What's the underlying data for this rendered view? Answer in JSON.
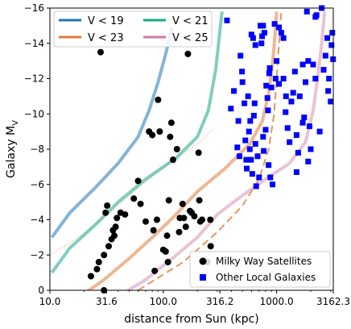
{
  "chart_data": {
    "type": "scatter",
    "xlabel": "distance from Sun (kpc)",
    "ylabel": "Galaxy $M_V$",
    "x_scale": "log",
    "xlim": [
      10.0,
      3162.3
    ],
    "ylim": [
      0,
      -16
    ],
    "x_ticks": [
      "10.0",
      "31.6",
      "100.0",
      "316.2",
      "1000.0",
      "3162.3"
    ],
    "x_tick_values": [
      10.0,
      31.6,
      100.0,
      316.2,
      1000.0,
      3162.3
    ],
    "y_ticks": [
      "0",
      "−2",
      "−4",
      "−6",
      "−8",
      "−10",
      "−12",
      "−14",
      "−16"
    ],
    "y_tick_values": [
      0,
      -2,
      -4,
      -6,
      -8,
      -10,
      -12,
      -14,
      -16
    ],
    "limit_curves": [
      {
        "name": "V < 19",
        "color": "#1f77b4",
        "opacity": 0.55,
        "width": 4,
        "points": [
          [
            10.4,
            -3.0
          ],
          [
            15,
            -4.4
          ],
          [
            25,
            -5.8
          ],
          [
            40,
            -7.2
          ],
          [
            60,
            -8.7
          ],
          [
            75,
            -10.2
          ],
          [
            90,
            -11.8
          ],
          [
            105,
            -13.4
          ],
          [
            120,
            -14.9
          ]
        ]
      },
      {
        "name": "V < 21",
        "color": "#17a589",
        "opacity": 0.55,
        "width": 4,
        "points": [
          [
            10.4,
            -1.0
          ],
          [
            15,
            -2.4
          ],
          [
            25,
            -3.7
          ],
          [
            40,
            -5.0
          ],
          [
            70,
            -6.3
          ],
          [
            130,
            -7.5
          ],
          [
            200,
            -8.7
          ],
          [
            250,
            -10.2
          ],
          [
            290,
            -12.5
          ],
          [
            330,
            -15.8
          ]
        ]
      },
      {
        "name": "V < 23",
        "color": "#e07b39",
        "opacity": 0.55,
        "width": 4,
        "points": [
          [
            19,
            0.3
          ],
          [
            30,
            -0.6
          ],
          [
            50,
            -1.8
          ],
          [
            80,
            -3.0
          ],
          [
            130,
            -4.3
          ],
          [
            200,
            -5.6
          ],
          [
            350,
            -6.9
          ],
          [
            580,
            -8.3
          ],
          [
            750,
            -9.6
          ],
          [
            850,
            -11.2
          ],
          [
            920,
            -12.8
          ],
          [
            970,
            -14.5
          ],
          [
            1000,
            -15.8
          ]
        ]
      },
      {
        "name": "V < 25",
        "color": "#cc79a7",
        "opacity": 0.45,
        "width": 4,
        "points": [
          [
            41,
            0.3
          ],
          [
            70,
            -0.6
          ],
          [
            120,
            -1.8
          ],
          [
            200,
            -3.0
          ],
          [
            300,
            -4.3
          ],
          [
            480,
            -5.3
          ],
          [
            800,
            -6.3
          ],
          [
            1300,
            -7.2
          ],
          [
            1800,
            -8.4
          ],
          [
            2100,
            -10.2
          ],
          [
            2300,
            -12.0
          ],
          [
            2500,
            -14.0
          ],
          [
            2650,
            -15.8
          ]
        ]
      }
    ],
    "other_curves": [
      {
        "color": "#e07b39",
        "opacity": 0.8,
        "width": 2,
        "dash": "9,5",
        "points": [
          [
            60,
            0.0
          ],
          [
            150,
            -1.6
          ],
          [
            300,
            -3.3
          ],
          [
            500,
            -4.8
          ],
          [
            700,
            -6.3
          ],
          [
            850,
            -8.0
          ],
          [
            950,
            -10.0
          ],
          [
            1000,
            -12.0
          ],
          [
            1050,
            -14.0
          ],
          [
            1100,
            -15.8
          ]
        ]
      },
      {
        "color": "#e07b39",
        "opacity": 0.75,
        "width": 1,
        "dash": "1,2",
        "points": [
          [
            10,
            -2.0
          ],
          [
            20,
            -3.2
          ],
          [
            35,
            -4.5
          ],
          [
            55,
            -5.6
          ],
          [
            85,
            -6.6
          ],
          [
            130,
            -7.5
          ],
          [
            200,
            -8.3
          ],
          [
            280,
            -9.2
          ]
        ]
      }
    ],
    "series": [
      {
        "name": "Milky Way Satellites",
        "marker": "circle",
        "color": "#000000",
        "points": [
          [
            28,
            -13.5
          ],
          [
            23,
            -0.8
          ],
          [
            26,
            -1.2
          ],
          [
            27,
            -1.6
          ],
          [
            30,
            -2.0
          ],
          [
            33,
            -2.5
          ],
          [
            35,
            -2.9
          ],
          [
            36,
            -3.4
          ],
          [
            37,
            -3.1
          ],
          [
            38,
            -3.6
          ],
          [
            39,
            -4.1
          ],
          [
            31,
            -4.4
          ],
          [
            32,
            -4.8
          ],
          [
            42,
            -4.4
          ],
          [
            46,
            -4.3
          ],
          [
            55,
            -5.2
          ],
          [
            60,
            -6.2
          ],
          [
            63,
            -4.9
          ],
          [
            70,
            -3.9
          ],
          [
            75,
            -9.0
          ],
          [
            80,
            -8.8
          ],
          [
            82,
            -3.4
          ],
          [
            84,
            -1.1
          ],
          [
            88,
            -4.0
          ],
          [
            90,
            -10.8
          ],
          [
            93,
            -9.0
          ],
          [
            100,
            -2.3
          ],
          [
            105,
            -2.2
          ],
          [
            108,
            -3.1
          ],
          [
            110,
            -1.6
          ],
          [
            112,
            -5.1
          ],
          [
            115,
            -8.7
          ],
          [
            118,
            -9.5
          ],
          [
            122,
            -7.4
          ],
          [
            132,
            -8.0
          ],
          [
            138,
            -3.3
          ],
          [
            140,
            -4.1
          ],
          [
            148,
            -4.9
          ],
          [
            152,
            -4.1
          ],
          [
            158,
            -3.6
          ],
          [
            165,
            -13.4
          ],
          [
            172,
            -4.5
          ],
          [
            178,
            -4.4
          ],
          [
            188,
            -4.2
          ],
          [
            205,
            -7.8
          ],
          [
            208,
            -5.1
          ],
          [
            212,
            -3.9
          ],
          [
            220,
            -4.0
          ],
          [
            260,
            -4.0
          ],
          [
            262,
            -2.5
          ],
          [
            245,
            -1.6
          ],
          [
            30,
            0.0
          ]
        ]
      },
      {
        "name": "Other Local Galaxies",
        "marker": "square",
        "color": "#0000ff",
        "points": [
          [
            365,
            -15.3
          ],
          [
            395,
            -10.3
          ],
          [
            420,
            -11.3
          ],
          [
            450,
            -8.1
          ],
          [
            460,
            -9.6
          ],
          [
            470,
            -7.6
          ],
          [
            480,
            -13.3
          ],
          [
            495,
            -12.4
          ],
          [
            500,
            -11.8
          ],
          [
            520,
            -10.6
          ],
          [
            530,
            -8.5
          ],
          [
            540,
            -7.4
          ],
          [
            545,
            -6.9
          ],
          [
            560,
            -11.0
          ],
          [
            570,
            -9.0
          ],
          [
            580,
            -8.0
          ],
          [
            595,
            -7.4
          ],
          [
            610,
            -6.6
          ],
          [
            630,
            -9.9
          ],
          [
            640,
            -10.6
          ],
          [
            650,
            -8.3
          ],
          [
            660,
            -5.9
          ],
          [
            680,
            -7.6
          ],
          [
            700,
            -6.4
          ],
          [
            720,
            -15.0
          ],
          [
            735,
            -14.0
          ],
          [
            745,
            -14.4
          ],
          [
            760,
            -8.7
          ],
          [
            770,
            -7.9
          ],
          [
            780,
            -14.6
          ],
          [
            800,
            -9.1
          ],
          [
            810,
            -11.6
          ],
          [
            830,
            -10.9
          ],
          [
            840,
            -10.2
          ],
          [
            850,
            -7.1
          ],
          [
            860,
            -12.3
          ],
          [
            870,
            -12.6
          ],
          [
            880,
            -6.4
          ],
          [
            900,
            -11.5
          ],
          [
            920,
            -6.0
          ],
          [
            960,
            -15.1
          ],
          [
            1050,
            -14.9
          ],
          [
            1100,
            -14.6
          ],
          [
            1150,
            -12.0
          ],
          [
            1200,
            -10.1
          ],
          [
            1210,
            -11.0
          ],
          [
            1250,
            -9.2
          ],
          [
            1300,
            -8.4
          ],
          [
            1350,
            -10.7
          ],
          [
            1400,
            -11.2
          ],
          [
            1450,
            -12.4
          ],
          [
            1500,
            -8.8
          ],
          [
            1550,
            -7.8
          ],
          [
            1600,
            -11.0
          ],
          [
            1700,
            -12.8
          ],
          [
            1750,
            -9.8
          ],
          [
            1800,
            -11.8
          ],
          [
            1850,
            -15.8
          ],
          [
            1900,
            -13.0
          ],
          [
            1950,
            -9.3
          ],
          [
            2000,
            -8.0
          ],
          [
            2100,
            -12.8
          ],
          [
            2200,
            -15.5
          ],
          [
            2250,
            -15.6
          ],
          [
            2500,
            -16.0
          ],
          [
            2600,
            -12.5
          ],
          [
            2700,
            -13.3
          ],
          [
            2800,
            -14.3
          ],
          [
            2850,
            -11.3
          ],
          [
            2900,
            -12.0
          ],
          [
            3000,
            -10.7
          ],
          [
            3050,
            -13.9
          ],
          [
            3100,
            -14.6
          ],
          [
            3150,
            -13.1
          ],
          [
            2200,
            -12.0
          ],
          [
            2400,
            -9.0
          ],
          [
            1900,
            -7.3
          ],
          [
            1700,
            -9.5
          ],
          [
            1500,
            -6.7
          ],
          [
            1050,
            -11.7
          ],
          [
            1000,
            -13.0
          ],
          [
            980,
            -12.0
          ],
          [
            760,
            -15.0
          ],
          [
            650,
            -13.9
          ],
          [
            620,
            -14.3
          ],
          [
            600,
            -14.5
          ],
          [
            585,
            -9.6
          ],
          [
            1150,
            -14.3
          ]
        ]
      }
    ],
    "legend_upper": {
      "placement": "top-left",
      "columns": 2
    },
    "legend_lower": {
      "placement": "bottom-right"
    },
    "grid": false
  }
}
